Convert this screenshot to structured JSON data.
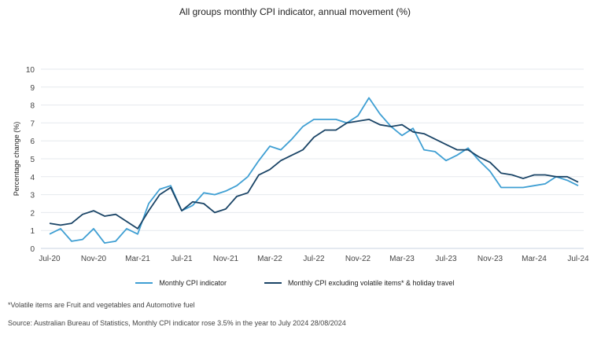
{
  "chart_data": {
    "type": "line",
    "title": "All groups monthly CPI indicator, annual movement (%)",
    "xlabel": "",
    "ylabel": "Percentage change (%)",
    "ylim": [
      0,
      10
    ],
    "yticks": [
      "0",
      "1",
      "2",
      "3",
      "4",
      "5",
      "6",
      "7",
      "8",
      "9",
      "10"
    ],
    "x_start": "Jul-20",
    "x_end": "Jul-24",
    "x_frequency": "monthly",
    "xtick_labels": [
      "Jul-20",
      "Nov-20",
      "Mar-21",
      "Jul-21",
      "Nov-21",
      "Mar-22",
      "Jul-22",
      "Nov-22",
      "Mar-23",
      "Jul-23",
      "Nov-23",
      "Mar-24",
      "Jul-24"
    ],
    "grid": true,
    "legend_position": "bottom",
    "series": [
      {
        "name": "Monthly CPI indicator",
        "color": "#3f9fd3",
        "values": [
          0.8,
          1.1,
          0.4,
          0.5,
          1.1,
          0.3,
          0.4,
          1.1,
          0.8,
          2.5,
          3.3,
          3.5,
          2.1,
          2.4,
          3.1,
          3.0,
          3.2,
          3.5,
          4.0,
          4.9,
          5.7,
          5.5,
          6.1,
          6.8,
          7.2,
          7.2,
          7.2,
          7.0,
          7.4,
          8.4,
          7.5,
          6.8,
          6.3,
          6.7,
          5.5,
          5.4,
          4.9,
          5.2,
          5.6,
          4.9,
          4.3,
          3.4,
          3.4,
          3.4,
          3.5,
          3.6,
          4.0,
          3.8,
          3.5
        ]
      },
      {
        "name": "Monthly CPI excluding volatile items* & holiday travel",
        "color": "#1a4466",
        "values": [
          1.4,
          1.3,
          1.4,
          1.9,
          2.1,
          1.8,
          1.9,
          1.5,
          1.1,
          2.1,
          3.0,
          3.4,
          2.1,
          2.6,
          2.5,
          2.0,
          2.2,
          2.9,
          3.1,
          4.1,
          4.4,
          4.9,
          5.2,
          5.5,
          6.2,
          6.6,
          6.6,
          7.0,
          7.1,
          7.2,
          6.9,
          6.8,
          6.9,
          6.5,
          6.4,
          6.1,
          5.8,
          5.5,
          5.5,
          5.1,
          4.8,
          4.2,
          4.1,
          3.9,
          4.1,
          4.1,
          4.0,
          4.0,
          3.7
        ]
      }
    ]
  },
  "footnotes": {
    "volatile": "*Volatile items are Fruit and vegetables and Automotive fuel",
    "source": "Source: Australian Bureau of Statistics, Monthly CPI indicator rose 3.5% in the year to July 2024 28/08/2024"
  }
}
